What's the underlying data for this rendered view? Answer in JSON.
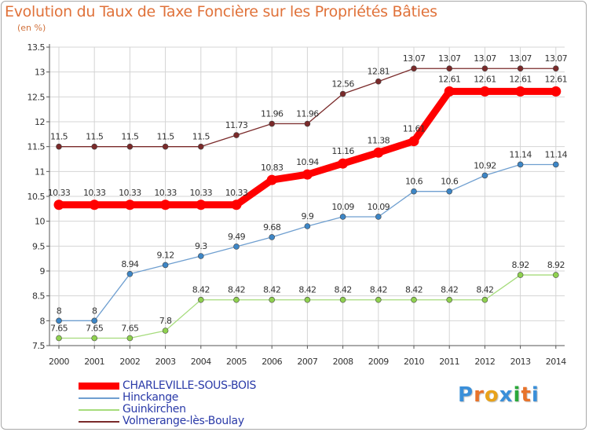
{
  "header": {
    "title": "Evolution du Taux de Taxe Foncière sur les Propriétés Bâties",
    "unit": "(en %)"
  },
  "logo": {
    "letters": [
      "P",
      "r",
      "o",
      "x",
      "i",
      "t",
      "i"
    ],
    "colors": [
      "#3a8fd9",
      "#e8732a",
      "#e8a21a",
      "#3a8fd9",
      "#2aa83a",
      "#e8732a",
      "#3a8fd9"
    ]
  },
  "chart_data": {
    "type": "line",
    "title": "Evolution du Taux de Taxe Foncière sur les Propriétés Bâties",
    "ylabel": "(en %)",
    "xlabel": "",
    "x": [
      "2000",
      "2001",
      "2002",
      "2003",
      "2004",
      "2005",
      "2006",
      "2007",
      "2008",
      "2009",
      "2010",
      "2011",
      "2012",
      "2013",
      "2014"
    ],
    "ylim": [
      7.5,
      13.5
    ],
    "yticks": [
      "7.5",
      "8",
      "8.5",
      "9",
      "9.5",
      "10",
      "10.5",
      "11",
      "11.5",
      "12",
      "12.5",
      "13",
      "13.5"
    ],
    "series": [
      {
        "name": "Volmerange-lès-Boulay",
        "color": "#7a2a2a",
        "dot": "#7a2a2a",
        "bold": false,
        "values": [
          11.5,
          11.5,
          11.5,
          11.5,
          11.5,
          11.73,
          11.96,
          11.96,
          12.56,
          12.81,
          13.07,
          13.07,
          13.07,
          13.07,
          13.07
        ],
        "labels": [
          "11.5",
          "11.5",
          "11.5",
          "11.5",
          "11.5",
          "11.73",
          "11.96",
          "11.96",
          "12.56",
          "12.81",
          "13.07",
          "13.07",
          "13.07",
          "13.07",
          "13.07"
        ]
      },
      {
        "name": "Guinkirchen",
        "color": "#a6dc7c",
        "dot": "#8fd14f",
        "bold": false,
        "values": [
          7.65,
          7.65,
          7.65,
          7.8,
          8.42,
          8.42,
          8.42,
          8.42,
          8.42,
          8.42,
          8.42,
          8.42,
          8.42,
          8.92,
          8.92
        ],
        "labels": [
          "7.65",
          "7.65",
          "7.65",
          "7.8",
          "8.42",
          "8.42",
          "8.42",
          "8.42",
          "8.42",
          "8.42",
          "8.42",
          "8.42",
          "8.42",
          "8.92",
          "8.92"
        ]
      },
      {
        "name": "Hinckange",
        "color": "#6f9fd0",
        "dot": "#3d86c6",
        "bold": false,
        "values": [
          8,
          8,
          8.94,
          9.12,
          9.3,
          9.49,
          9.68,
          9.9,
          10.09,
          10.09,
          10.6,
          10.6,
          10.92,
          11.14,
          11.14
        ],
        "labels": [
          "8",
          "8",
          "8.94",
          "9.12",
          "9.3",
          "9.49",
          "9.68",
          "9.9",
          "10.09",
          "10.09",
          "10.6",
          "10.6",
          "10.92",
          "11.14",
          "11.14"
        ]
      },
      {
        "name": "CHARLEVILLE-SOUS-BOIS",
        "color": "#ff0000",
        "dot": "#ff0000",
        "bold": true,
        "values": [
          10.33,
          10.33,
          10.33,
          10.33,
          10.33,
          10.33,
          10.83,
          10.94,
          11.16,
          11.38,
          11.61,
          12.61,
          12.61,
          12.61,
          12.61
        ],
        "labels": [
          "10.33",
          "10.33",
          "10.33",
          "10.33",
          "10.33",
          "10.33",
          "10.83",
          "10.94",
          "11.16",
          "11.38",
          "11.61",
          "12.61",
          "12.61",
          "12.61",
          "12.61"
        ]
      }
    ],
    "legend": [
      {
        "name": "CHARLEVILLE-SOUS-BOIS",
        "color": "#ff0000",
        "bold": true
      },
      {
        "name": "Hinckange",
        "color": "#6f9fd0",
        "bold": false
      },
      {
        "name": "Guinkirchen",
        "color": "#a6dc7c",
        "bold": false
      },
      {
        "name": "Volmerange-lès-Boulay",
        "color": "#7a2a2a",
        "bold": false
      }
    ],
    "legend_text_color": "#2a3aa8",
    "axis_color": "#555555",
    "grid": true,
    "grid_color": "#d4d4d4"
  }
}
